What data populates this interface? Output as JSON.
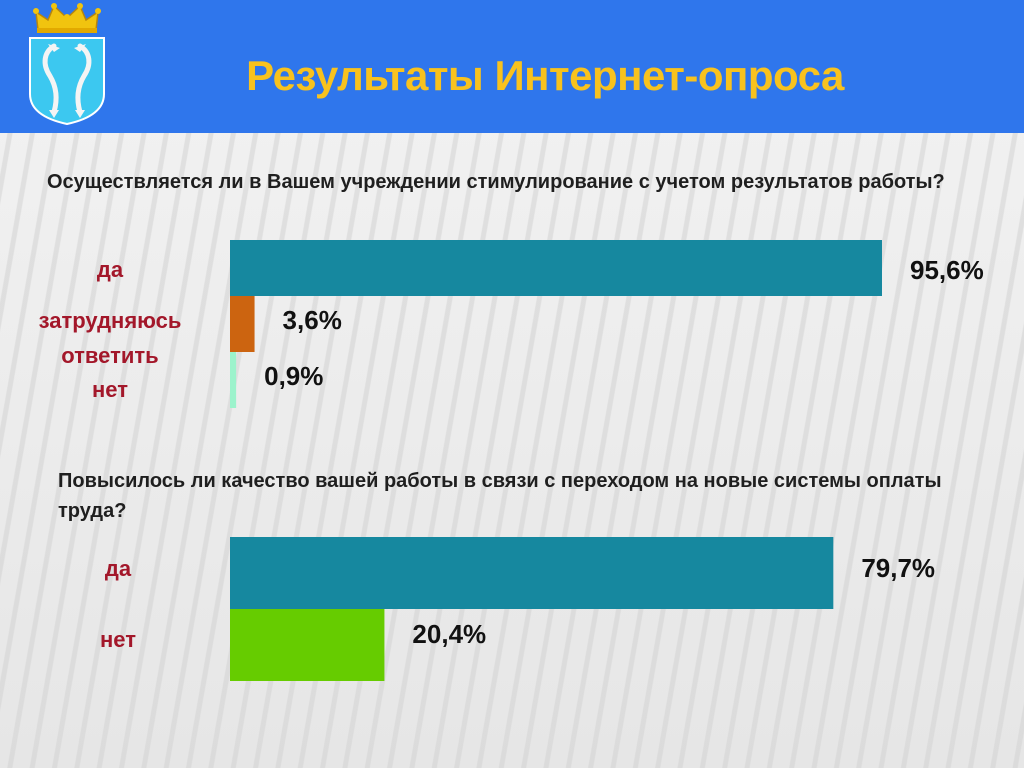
{
  "header": {
    "title": "Результаты Интернет-опроса",
    "emblem_icon": "saratov-coat-of-arms-icon",
    "background_color": "#2f76ec",
    "title_color": "#f8c21e"
  },
  "chart_data": [
    {
      "type": "bar",
      "orientation": "horizontal",
      "title": "Осуществляется ли в Вашем учреждении стимулирование с учетом результатов работы?",
      "categories": [
        "да",
        "затрудняюсь ответить",
        "нет"
      ],
      "values": [
        95.6,
        3.6,
        0.9
      ],
      "value_labels": [
        "95,6%",
        "3,6%",
        "0,9%"
      ],
      "colors": [
        "#16889f",
        "#cc6410",
        "#9cf3cc"
      ],
      "xlabel": "",
      "ylabel": "",
      "xlim": [
        0,
        100
      ],
      "grid": false,
      "legend": "none"
    },
    {
      "type": "bar",
      "orientation": "horizontal",
      "title": "Повысилось ли качество вашей работы в связи с переходом на новые системы оплаты труда?",
      "categories": [
        "да",
        "нет"
      ],
      "values": [
        79.7,
        20.4
      ],
      "value_labels": [
        "79,7%",
        "20,4%"
      ],
      "colors": [
        "#16889f",
        "#66cc00"
      ],
      "xlabel": "",
      "ylabel": "",
      "xlim": [
        0,
        100
      ],
      "grid": false,
      "legend": "none"
    }
  ]
}
